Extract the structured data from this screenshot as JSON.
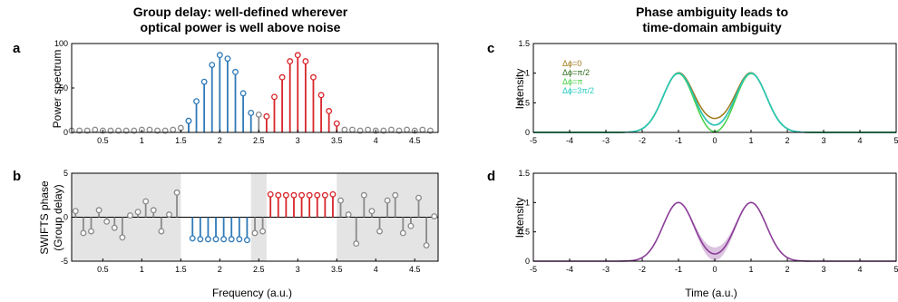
{
  "titles": {
    "left_line1": "Group delay: well-defined wherever",
    "left_line2": "optical power is well above noise",
    "right_line1": "Phase ambiguity leads to",
    "right_line2": "time-domain ambiguity"
  },
  "colors": {
    "blue": "#2f7ab9",
    "red": "#d7262b",
    "gray": "#8a8a8a",
    "shade": "#e4e4e4",
    "purple": "#8a3d97",
    "purple_band": "#dcc3e0",
    "phase_colors": [
      "#a07a1a",
      "#2f6d1e",
      "#46d046",
      "#26c9c0"
    ]
  },
  "chart_data": [
    {
      "id": "a",
      "panel_label": "a",
      "type": "scatter",
      "style": "stem",
      "ylabel": "Power spectrum",
      "xlabel": "",
      "xlim": [
        0.1,
        4.8
      ],
      "ylim": [
        0,
        100
      ],
      "x_ticks": [
        "0.5",
        "1",
        "1.5",
        "2",
        "2.5",
        "3",
        "3.5",
        "4",
        "4.5"
      ],
      "y_ticks": [
        "0",
        "50",
        "100"
      ],
      "series": [
        {
          "color_key": "gray",
          "x": [
            0.1,
            0.2,
            0.3,
            0.4,
            0.5,
            0.6,
            0.7,
            0.8,
            0.9,
            1.0,
            1.1,
            1.2,
            1.3,
            1.4,
            1.5,
            1.6,
            2.5,
            3.6,
            3.7,
            3.8,
            3.9,
            4.0,
            4.1,
            4.2,
            4.3,
            4.4,
            4.5,
            4.6,
            4.7
          ],
          "y": [
            2,
            2,
            2,
            3,
            2,
            2,
            2,
            2,
            2,
            3,
            3,
            2,
            2,
            3,
            5,
            13,
            20,
            3,
            3,
            2,
            3,
            2,
            2,
            3,
            2,
            3,
            2,
            3,
            2
          ]
        },
        {
          "color_key": "blue",
          "x": [
            1.6,
            1.7,
            1.8,
            1.9,
            2.0,
            2.1,
            2.2,
            2.3,
            2.4
          ],
          "y": [
            13,
            35,
            57,
            76,
            87,
            83,
            68,
            44,
            22
          ]
        },
        {
          "color_key": "red",
          "x": [
            2.6,
            2.7,
            2.8,
            2.9,
            3.0,
            3.1,
            3.2,
            3.3,
            3.4,
            3.5
          ],
          "y": [
            18,
            40,
            62,
            80,
            87,
            80,
            62,
            42,
            24,
            10
          ]
        }
      ]
    },
    {
      "id": "b",
      "panel_label": "b",
      "type": "scatter",
      "style": "stem",
      "ylabel_line1": "SWIFTS phase",
      "ylabel_line2": "(Group delay)",
      "xlabel": "Frequency (a.u.)",
      "xlim": [
        0.1,
        4.8
      ],
      "ylim": [
        -5,
        5
      ],
      "shaded_x_ranges": [
        [
          0.1,
          1.5
        ],
        [
          2.4,
          2.6
        ],
        [
          3.5,
          4.8
        ]
      ],
      "x_ticks": [
        "0.5",
        "1",
        "1.5",
        "2",
        "2.5",
        "3",
        "3.5",
        "4",
        "4.5"
      ],
      "y_ticks": [
        "-5",
        "0",
        "5"
      ],
      "series": [
        {
          "color_key": "gray",
          "x": [
            0.15,
            0.25,
            0.35,
            0.45,
            0.55,
            0.65,
            0.75,
            0.85,
            0.95,
            1.05,
            1.15,
            1.25,
            1.35,
            1.45,
            2.45,
            2.55,
            3.55,
            3.65,
            3.75,
            3.85,
            3.95,
            4.05,
            4.15,
            4.25,
            4.35,
            4.45,
            4.55,
            4.65,
            4.75
          ],
          "y": [
            0.7,
            -1.8,
            -1.6,
            0.8,
            -0.5,
            -1.2,
            -2.3,
            0.2,
            0.6,
            1.8,
            0.8,
            -1.6,
            0.3,
            2.8,
            -1.8,
            -1.6,
            1.9,
            0.3,
            -3.0,
            2.5,
            0.7,
            -1.6,
            1.9,
            2.5,
            -1.8,
            -1.0,
            2.2,
            -3.2,
            0.1
          ]
        },
        {
          "color_key": "blue",
          "x": [
            1.65,
            1.75,
            1.85,
            1.95,
            2.05,
            2.15,
            2.25,
            2.35
          ],
          "y": [
            -2.4,
            -2.5,
            -2.5,
            -2.5,
            -2.5,
            -2.5,
            -2.5,
            -2.6
          ]
        },
        {
          "color_key": "red",
          "x": [
            2.65,
            2.75,
            2.85,
            2.95,
            3.05,
            3.15,
            3.25,
            3.35,
            3.45
          ],
          "y": [
            2.6,
            2.5,
            2.5,
            2.5,
            2.5,
            2.5,
            2.5,
            2.5,
            2.6
          ]
        }
      ]
    },
    {
      "id": "c",
      "panel_label": "c",
      "type": "line",
      "ylabel": "Intensity",
      "xlabel": "",
      "xlim": [
        -5,
        5
      ],
      "ylim": [
        0,
        1.5
      ],
      "x_ticks": [
        "-5",
        "-4",
        "-3",
        "-2",
        "-1",
        "0",
        "1",
        "2",
        "3",
        "4",
        "5"
      ],
      "y_ticks": [
        "0",
        "0.5",
        "1",
        "1.5"
      ],
      "legend_position": "top-left",
      "series": [
        {
          "name": "Δϕ=0",
          "phase": 0
        },
        {
          "name": "Δϕ=π/2",
          "phase": 1.5708
        },
        {
          "name": "Δϕ=π",
          "phase": 3.1416
        },
        {
          "name": "Δϕ=3π/2",
          "phase": 4.7124
        }
      ]
    },
    {
      "id": "d",
      "panel_label": "d",
      "type": "area",
      "ylabel": "Intensity",
      "xlabel": "Time (a.u.)",
      "xlim": [
        -5,
        5
      ],
      "ylim": [
        0,
        1.5
      ],
      "x_ticks": [
        "-5",
        "-4",
        "-3",
        "-2",
        "-1",
        "0",
        "1",
        "2",
        "3",
        "4",
        "5"
      ],
      "y_ticks": [
        "0",
        "0.5",
        "1",
        "1.5"
      ],
      "series": [
        {
          "kind": "mean_with_band"
        }
      ]
    }
  ]
}
